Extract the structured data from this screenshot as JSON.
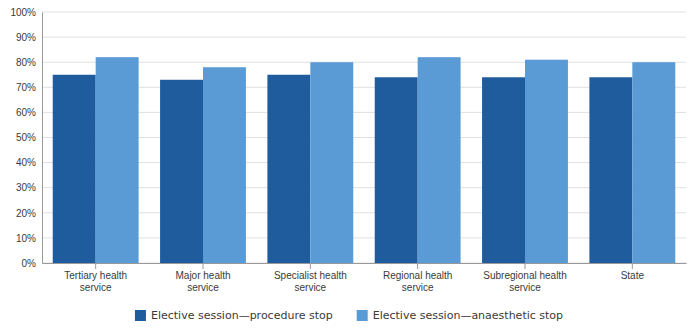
{
  "chart_data": {
    "type": "bar",
    "categories": [
      "Tertiary health\nservice",
      "Major health\nservice",
      "Specialist health\nservice",
      "Regional health\nservice",
      "Subregional health\nservice",
      "State"
    ],
    "series": [
      {
        "name": "Elective session—procedure stop",
        "color": "#1F5C9E",
        "values": [
          75,
          73,
          75,
          74,
          74,
          74
        ]
      },
      {
        "name": "Elective session—anaesthetic stop",
        "color": "#5B9BD5",
        "values": [
          82,
          78,
          80,
          82,
          81,
          80
        ]
      }
    ],
    "ylim": [
      0,
      100
    ],
    "yticks": [
      {
        "value": 0,
        "label": "0%"
      },
      {
        "value": 10,
        "label": "10%"
      },
      {
        "value": 20,
        "label": "20%"
      },
      {
        "value": 30,
        "label": "30%"
      },
      {
        "value": 40,
        "label": "40%"
      },
      {
        "value": 50,
        "label": "50%"
      },
      {
        "value": 60,
        "label": "60%"
      },
      {
        "value": 70,
        "label": "70%"
      },
      {
        "value": 80,
        "label": "80%"
      },
      {
        "value": 90,
        "label": "90%"
      },
      {
        "value": 100,
        "label": "100%"
      }
    ],
    "grid": true,
    "legend": "bottom"
  }
}
